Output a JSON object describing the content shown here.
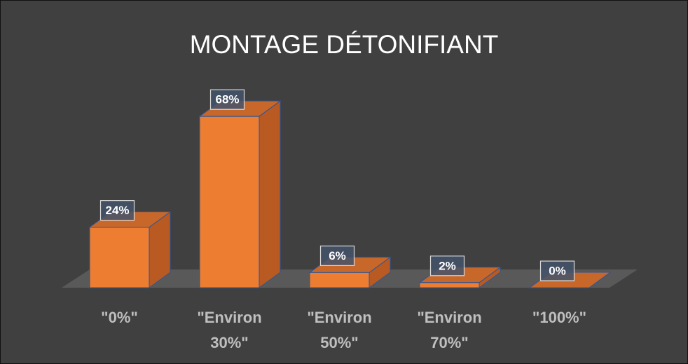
{
  "chart_data": {
    "type": "bar3d",
    "title": "MONTAGE DÉTONIFIANT",
    "categories": [
      "\"0%\"",
      "\"Environ 30%\"",
      "\"Environ 50%\"",
      "\"Environ 70%\"",
      "\"100%\""
    ],
    "values": [
      24,
      68,
      6,
      2,
      0
    ],
    "value_labels": [
      "24%",
      "68%",
      "6%",
      "2%",
      "0%"
    ],
    "color": "#ed7d31"
  }
}
